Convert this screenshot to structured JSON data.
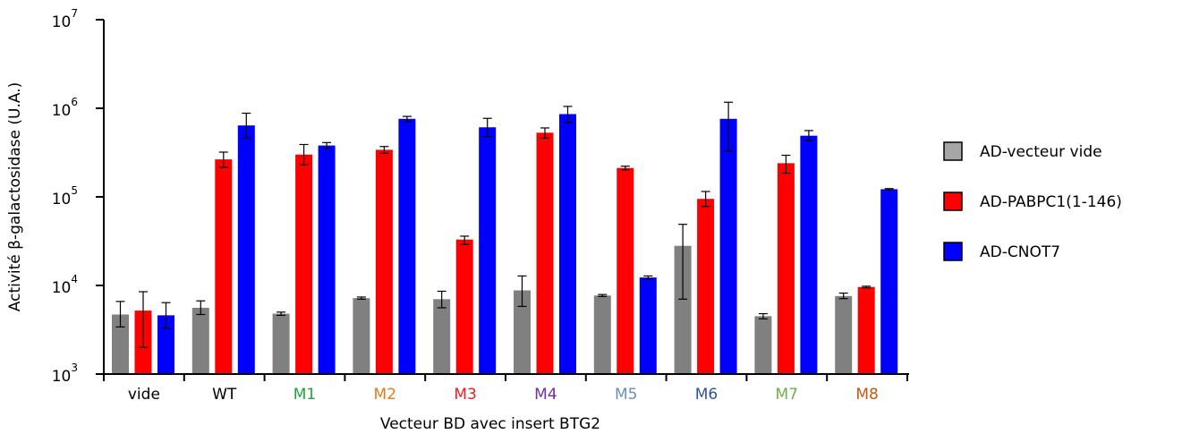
{
  "chart_data": {
    "type": "bar",
    "yscale": "log",
    "ylim": [
      1000,
      10000000
    ],
    "yticks": [
      {
        "base": "10",
        "exp": "3"
      },
      {
        "base": "10",
        "exp": "4"
      },
      {
        "base": "10",
        "exp": "5"
      },
      {
        "base": "10",
        "exp": "6"
      },
      {
        "base": "10",
        "exp": "7"
      }
    ],
    "xlabel": "Vecteur BD avec insert BTG2",
    "ylabel": "Activité β-galactosidase (U.A.)",
    "grid": false,
    "legend_position": "right",
    "categories": [
      {
        "label": "vide",
        "color": "#000000"
      },
      {
        "label": "WT",
        "color": "#000000"
      },
      {
        "label": "M1",
        "color": "#1fa53a"
      },
      {
        "label": "M2",
        "color": "#e07b21"
      },
      {
        "label": "M3",
        "color": "#ee1c1c"
      },
      {
        "label": "M4",
        "color": "#7030a0"
      },
      {
        "label": "M5",
        "color": "#6b8fb5"
      },
      {
        "label": "M6",
        "color": "#2f5597"
      },
      {
        "label": "M7",
        "color": "#70ad47"
      },
      {
        "label": "M8",
        "color": "#c55a11"
      }
    ],
    "series": [
      {
        "name": "AD-vecteur vide",
        "color": "#808080",
        "legend_color": "#a6a6a6",
        "values": [
          4700,
          5600,
          4800,
          7200,
          7000,
          8800,
          7700,
          28000,
          4500,
          7600
        ],
        "err_low": [
          3400,
          4700,
          4600,
          7000,
          5600,
          5800,
          7500,
          7000,
          4200,
          7100
        ],
        "err_high": [
          6600,
          6700,
          5000,
          7400,
          8600,
          12800,
          7900,
          49000,
          4800,
          8200
        ]
      },
      {
        "name": "AD-PABPC1(1-146)",
        "color": "#ff0000",
        "legend_color": "#ff0000",
        "values": [
          5200,
          265000,
          300000,
          340000,
          33000,
          530000,
          212000,
          95000,
          240000,
          9600
        ],
        "err_low": [
          2000,
          215000,
          230000,
          310000,
          29000,
          460000,
          202000,
          78000,
          185000,
          9400
        ],
        "err_high": [
          8500,
          320000,
          390000,
          370000,
          36000,
          600000,
          222000,
          115000,
          295000,
          9800
        ]
      },
      {
        "name": "AD-CNOT7",
        "color": "#0000ff",
        "legend_color": "#0000ff",
        "values": [
          4600,
          640000,
          380000,
          760000,
          610000,
          860000,
          12300,
          760000,
          490000,
          122000
        ],
        "err_low": [
          3300,
          460000,
          350000,
          710000,
          480000,
          690000,
          11800,
          330000,
          430000,
          120000
        ],
        "err_high": [
          6400,
          880000,
          410000,
          810000,
          770000,
          1050000,
          12800,
          1170000,
          560000,
          124000
        ]
      }
    ]
  }
}
